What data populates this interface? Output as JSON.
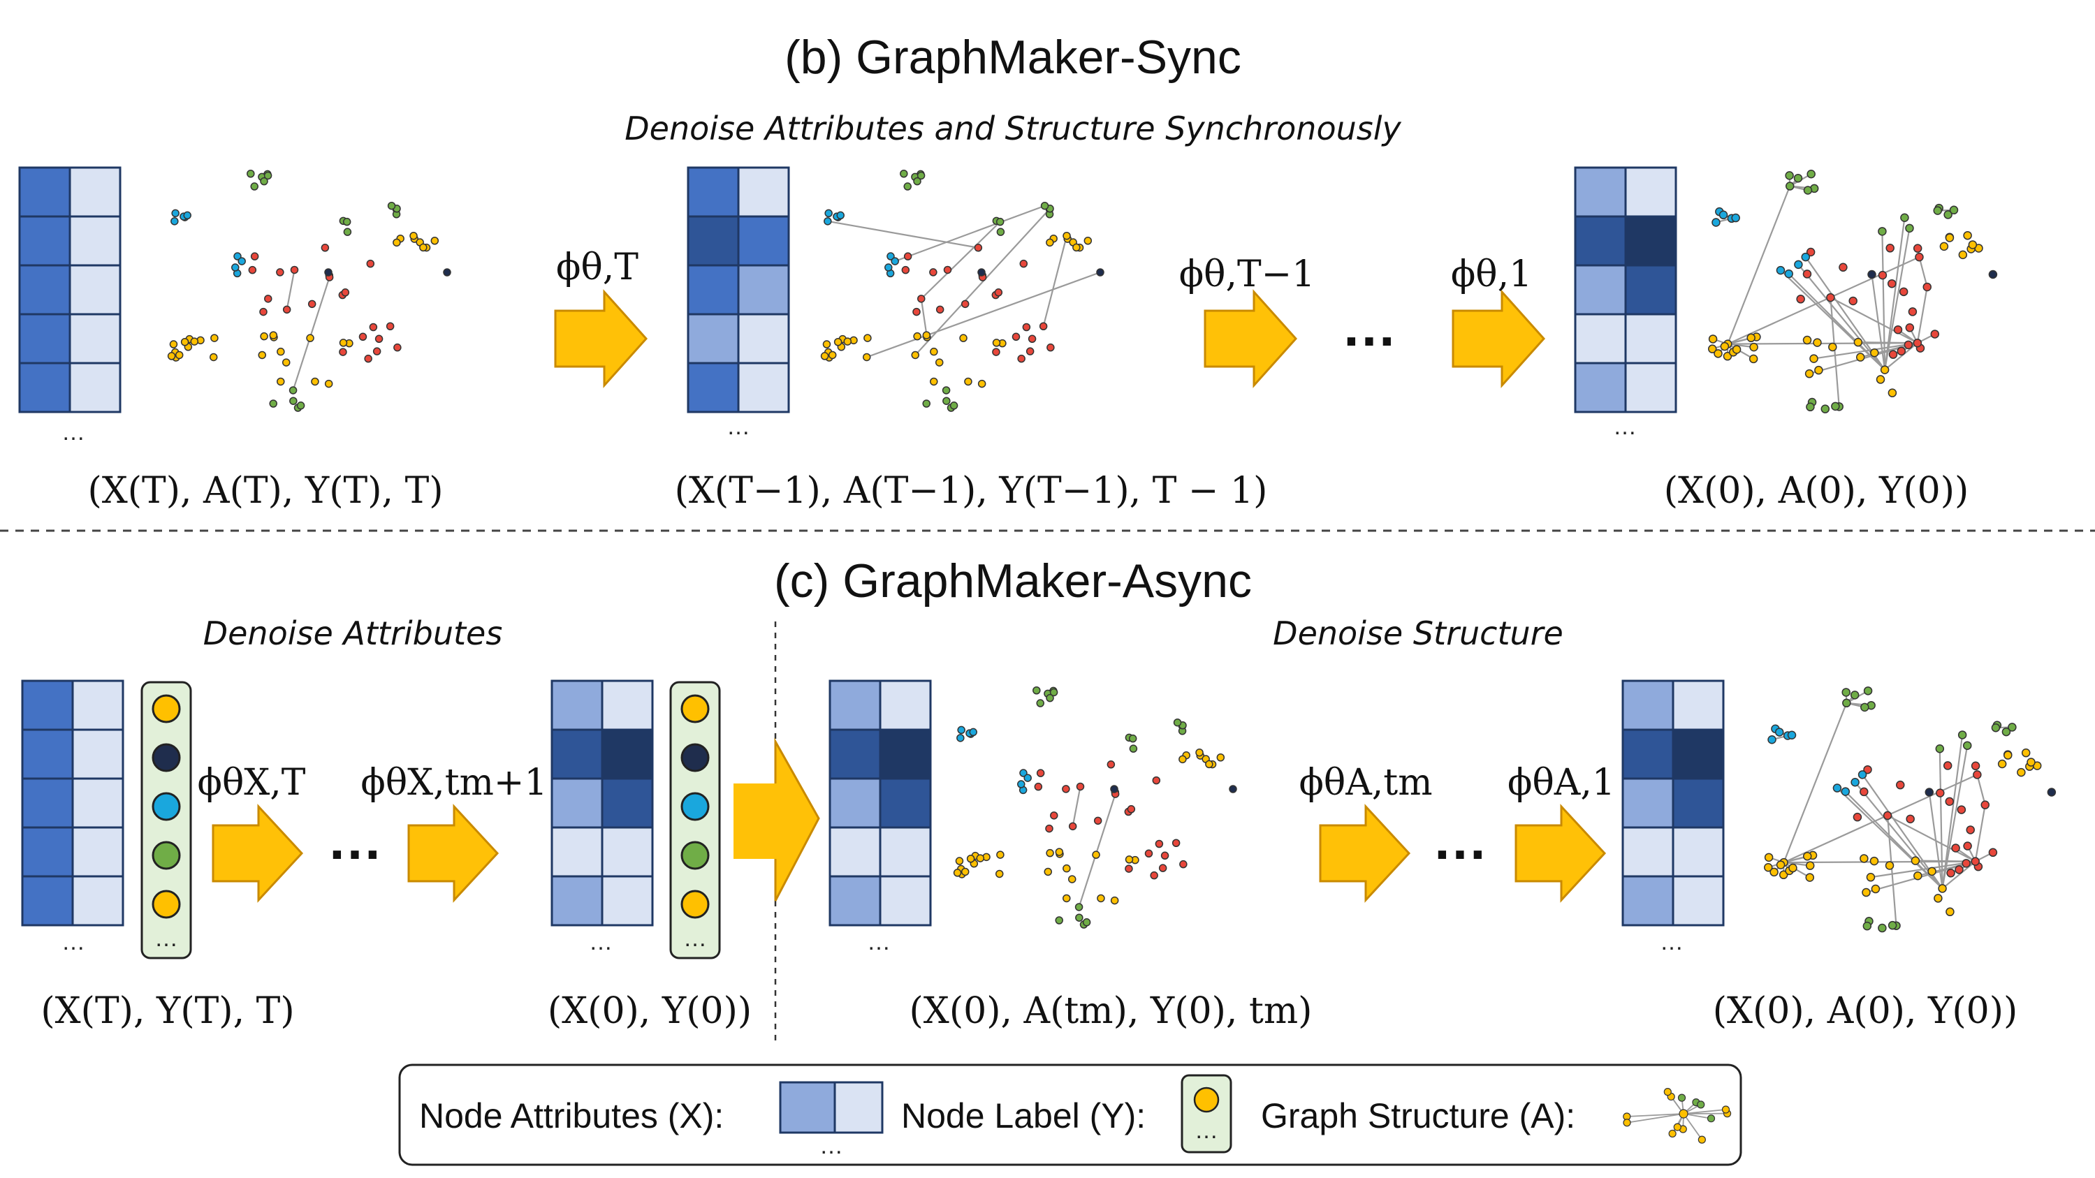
{
  "sync": {
    "title": "(b) GraphMaker-Sync",
    "subtitle": "Denoise Attributes and Structure Synchronously",
    "steps": [
      "ϕθ,T",
      "ϕθ,T−1",
      "ϕθ,1"
    ],
    "ellipsis": "…",
    "states": [
      "(X(T), A(T), Y(T), T)",
      "(X(T−1), A(T−1), Y(T−1), T − 1)",
      "(X(0), A(0), Y(0))"
    ]
  },
  "async": {
    "title": "(c) GraphMaker-Async",
    "phase_attributes": "Denoise Attributes",
    "phase_structure": "Denoise Structure",
    "steps": [
      "ϕθX,T",
      "ϕθX,tm+1",
      "ϕθA,tm",
      "ϕθA,1"
    ],
    "ellipsis": "…",
    "states": [
      "(X(T), Y(T), T)",
      "(X(0), Y(0))",
      "(X(0), A(tm), Y(0), tm)",
      "(X(0), A(0), Y(0))"
    ]
  },
  "legend": {
    "node_attributes": "Node Attributes (X):",
    "node_label": "Node Label (Y):",
    "graph_structure": "Graph Structure (A):"
  },
  "colors": {
    "arrow": "#FFC107",
    "grid_dark": "#4472C4",
    "grid_light": "#DAE3F3",
    "grid_mid": "#8FAADC",
    "grid_deep": "#2F5597",
    "grid_navy": "#1F3864",
    "label_box": "#E2F0D9",
    "node_yellow": "#FFC000",
    "node_navy": "#1F2D4D",
    "node_cyan": "#1AA7DD",
    "node_green": "#70AD47",
    "node_red": "#E8473B"
  }
}
